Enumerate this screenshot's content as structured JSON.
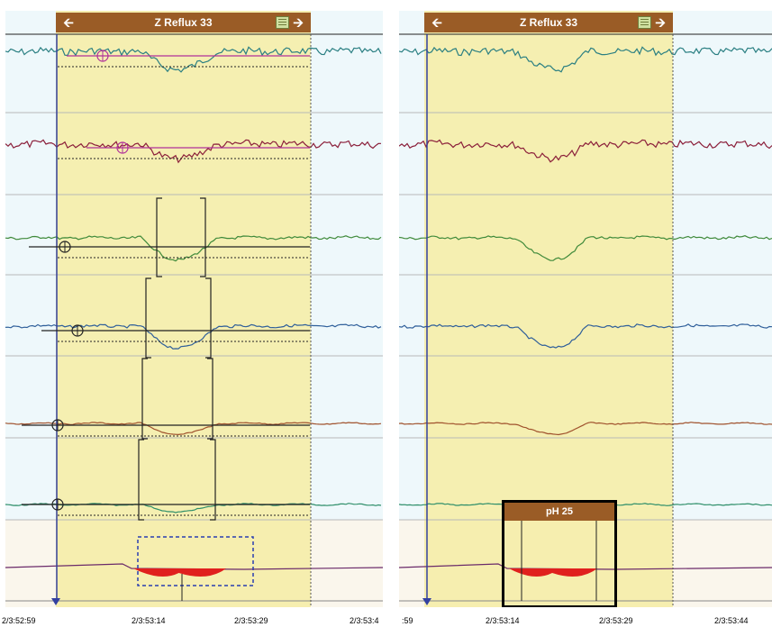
{
  "left_panel": {
    "event_label": "Z Reflux 33",
    "time_labels": [
      "2/3:52:59",
      "2/3:53:14",
      "2/3:53:29",
      "2/3:53:4"
    ]
  },
  "right_panel": {
    "event_label": "Z Reflux 33",
    "ph_label": "pH 25",
    "time_labels": [
      ":59",
      "2/3:53:14",
      "2/3:53:29",
      "2/3:53:44"
    ]
  },
  "colors": {
    "event_header": "#9a5c26",
    "event_region": "#f5eda8",
    "background": "#eef8fb",
    "cursor": "#3340a0",
    "channel_1": "#2a7f82",
    "channel_2": "#8b1f3a",
    "channel_3": "#3f8a3a",
    "channel_4": "#2f5f9a",
    "channel_5": "#a0522d",
    "channel_6": "#2f8f6a",
    "ph_trace": "#6a2a6a",
    "ph_fill": "#e0201e",
    "baseline_marker": "#b0309a"
  },
  "icons": [
    "arrow-left-icon",
    "arrow-right-icon",
    "list-icon"
  ]
}
